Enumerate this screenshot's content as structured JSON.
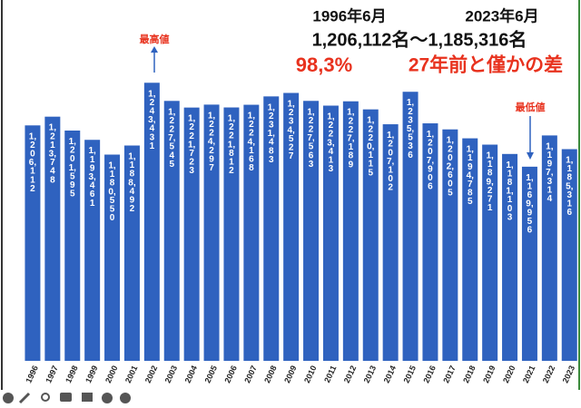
{
  "chart_data": {
    "type": "bar",
    "headline": {
      "date_left": "1996年6月",
      "date_right": "2023年6月",
      "range": "1,206,112名～1,185,316名",
      "ratio": "98,3%",
      "comment": "27年前と僅かの差"
    },
    "annotations": {
      "max": "最高値",
      "min": "最低値"
    },
    "categories": [
      "1996",
      "1997",
      "1998",
      "1999",
      "2000",
      "2001",
      "2002",
      "2003",
      "2004",
      "2005",
      "2006",
      "2007",
      "2008",
      "2009",
      "2010",
      "2011",
      "2012",
      "2013",
      "2014",
      "2015",
      "2016",
      "2017",
      "2018",
      "2019",
      "2020",
      "2021",
      "2022",
      "2023"
    ],
    "values": [
      1206112,
      1213748,
      1201595,
      1193461,
      1180550,
      1188492,
      1243431,
      1227545,
      1221723,
      1224297,
      1221812,
      1224168,
      1231483,
      1234527,
      1227563,
      1223413,
      1227189,
      1220115,
      1207102,
      1235536,
      1207906,
      1202605,
      1194785,
      1189271,
      1181103,
      1169956,
      1197314,
      1185316
    ],
    "value_labels": [
      "1,206,112",
      "1,213,748",
      "1,201,595",
      "1,193,461",
      "1,180,550",
      "1,188,492",
      "1,243,431",
      "1,227,545",
      "1,221,723",
      "1,224,297",
      "1,221,812",
      "1,224,168",
      "1,231,483",
      "1,234,527",
      "1,227,563",
      "1,223,413",
      "1,227,189",
      "1,220,115",
      "1,207,102",
      "1,235,536",
      "1,207,906",
      "1,202,605",
      "1,194,785",
      "1,189,271",
      "1,181,103",
      "1,169,956",
      "1,197,314",
      "1,185,316"
    ],
    "color": "#2f62bf",
    "ylim": [
      1000000,
      1300000
    ],
    "grid": false
  }
}
